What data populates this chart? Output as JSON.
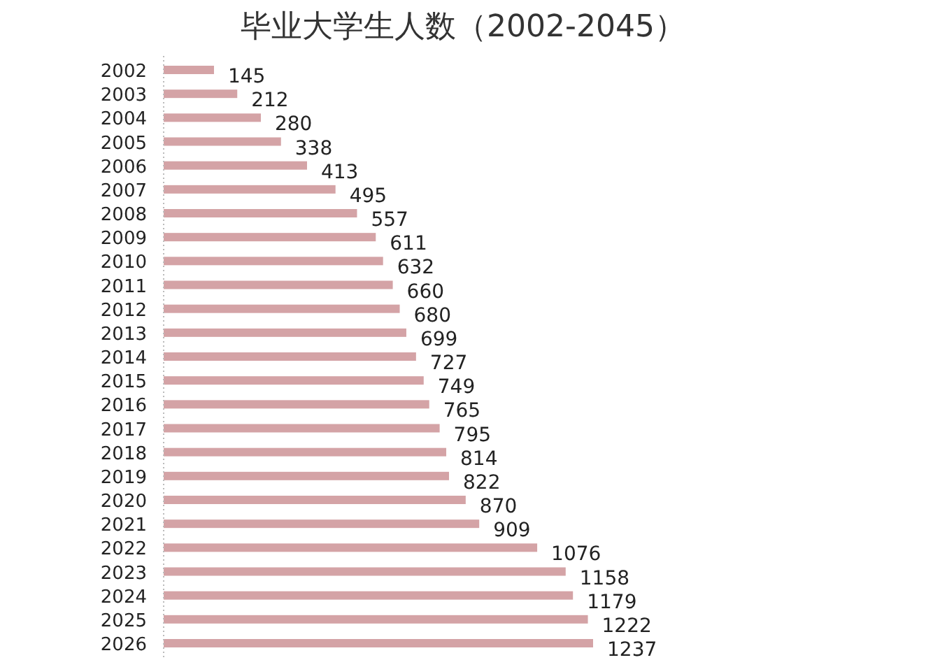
{
  "chart_data": {
    "type": "bar",
    "orientation": "horizontal",
    "data_labels": true,
    "color": "#d4a3a6",
    "title": "毕业大学生人数（2002-2045）",
    "categories": [
      "2002",
      "2003",
      "2004",
      "2005",
      "2006",
      "2007",
      "2008",
      "2009",
      "2010",
      "2011",
      "2012",
      "2013",
      "2014",
      "2015",
      "2016",
      "2017",
      "2018",
      "2019",
      "2020",
      "2021",
      "2022",
      "2023",
      "2024",
      "2025",
      "2026"
    ],
    "values": [
      145,
      212,
      280,
      338,
      413,
      495,
      557,
      611,
      632,
      660,
      680,
      699,
      727,
      749,
      765,
      795,
      814,
      822,
      870,
      909,
      1076,
      1158,
      1179,
      1222,
      1237
    ]
  }
}
